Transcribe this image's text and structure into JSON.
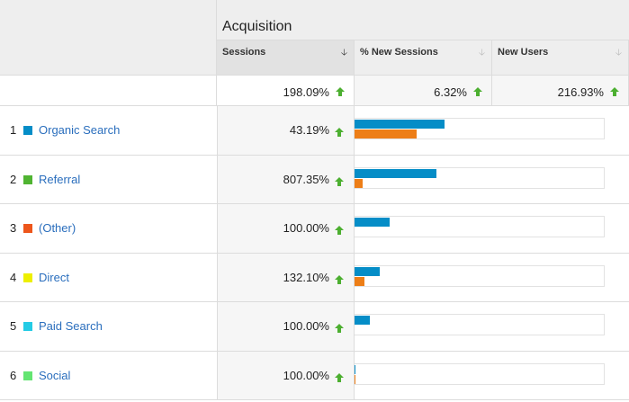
{
  "report": {
    "group_title": "Acquisition",
    "columns": [
      {
        "label": "Sessions",
        "sort": "desc",
        "total": "198.09%"
      },
      {
        "label": "% New Sessions",
        "sort": "none",
        "total": "6.32%"
      },
      {
        "label": "New Users",
        "sort": "none",
        "total": "216.93%"
      }
    ],
    "colors": {
      "series_a": "#058dc7",
      "series_b": "#ed7e17",
      "link": "#2a6ebd",
      "up_arrow": "#4caf30"
    },
    "rows": [
      {
        "num": "1",
        "channel": "Organic Search",
        "swatch": "#058dc7",
        "sessions": "43.19%",
        "bar_a": 0.36,
        "bar_b": 0.25
      },
      {
        "num": "2",
        "channel": "Referral",
        "swatch": "#50b432",
        "sessions": "807.35%",
        "bar_a": 0.33,
        "bar_b": 0.033
      },
      {
        "num": "3",
        "channel": "(Other)",
        "swatch": "#ed561b",
        "sessions": "100.00%",
        "bar_a": 0.14,
        "bar_b": 0
      },
      {
        "num": "4",
        "channel": "Direct",
        "swatch": "#edef00",
        "sessions": "132.10%",
        "bar_a": 0.1,
        "bar_b": 0.04
      },
      {
        "num": "5",
        "channel": "Paid Search",
        "swatch": "#24cbe5",
        "sessions": "100.00%",
        "bar_a": 0.06,
        "bar_b": 0
      },
      {
        "num": "6",
        "channel": "Social",
        "swatch": "#64e572",
        "sessions": "100.00%",
        "bar_a": 0.004,
        "bar_b": 0.004
      }
    ]
  }
}
